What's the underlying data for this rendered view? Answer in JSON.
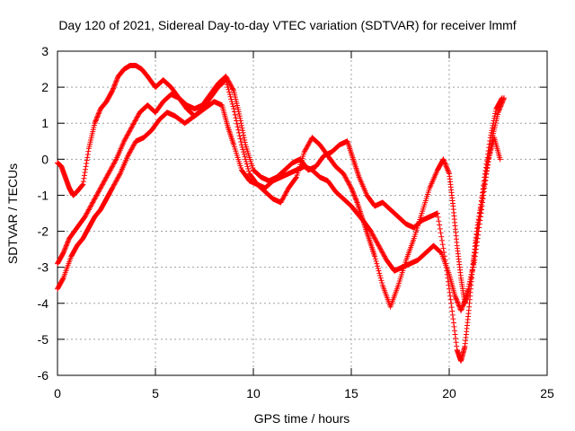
{
  "chart_data": {
    "type": "scatter",
    "title": "Day 120 of 2021, Sidereal Day-to-day VTEC variation (SDTVAR) for receiver lmmf",
    "xlabel": "GPS time / hours",
    "ylabel": "SDTVAR / TECUs",
    "xlim": [
      0,
      25
    ],
    "ylim": [
      -6,
      3
    ],
    "xticks": [
      "0",
      "5",
      "10",
      "15",
      "20",
      "25"
    ],
    "yticks": [
      "-6",
      "-5",
      "-4",
      "-3",
      "-2",
      "-1",
      "0",
      "1",
      "2",
      "3"
    ],
    "grid": true,
    "marker": "+",
    "color": "#ff0000",
    "series": [
      {
        "x": [
          0.0,
          0.3,
          0.7,
          1.0,
          1.3,
          1.6,
          1.9,
          2.2,
          2.5,
          2.8,
          3.2,
          3.6,
          4.0,
          4.4,
          4.8,
          5.2,
          5.6,
          6.0,
          6.5,
          7.0,
          7.5,
          8.0,
          8.4,
          8.7,
          9.0,
          9.4,
          9.8,
          10.2,
          10.6,
          11.0,
          11.4,
          11.8,
          12.2,
          12.6,
          13.0,
          13.4,
          13.8,
          14.2,
          14.6,
          15.0,
          15.3,
          15.6,
          16.0,
          16.4,
          16.8,
          17.2,
          17.6,
          18.0,
          18.4,
          18.8,
          19.2,
          19.6,
          20.0,
          20.3,
          20.6,
          20.9,
          21.2,
          21.5,
          21.8,
          22.1,
          22.4,
          22.7
        ],
        "y": [
          -3.6,
          -3.3,
          -2.7,
          -2.4,
          -2.2,
          -1.9,
          -1.6,
          -1.4,
          -1.1,
          -0.8,
          -0.4,
          0.1,
          0.5,
          0.6,
          0.8,
          1.1,
          1.3,
          1.2,
          1.0,
          1.2,
          1.4,
          1.6,
          1.5,
          0.9,
          0.4,
          -0.3,
          -0.6,
          -0.7,
          -0.8,
          -0.6,
          -0.5,
          -0.4,
          -0.3,
          -0.2,
          -0.3,
          -0.5,
          -0.6,
          -0.9,
          -1.1,
          -1.3,
          -1.5,
          -1.7,
          -2.0,
          -2.4,
          -2.8,
          -3.1,
          -3.0,
          -2.9,
          -2.8,
          -2.6,
          -2.4,
          -2.6,
          -3.2,
          -3.8,
          -4.2,
          -3.8,
          -3.0,
          -1.8,
          -0.5,
          0.6,
          1.4,
          1.7
        ]
      },
      {
        "x": [
          0.0,
          0.3,
          0.6,
          1.0,
          1.4,
          1.8,
          2.2,
          2.6,
          3.0,
          3.4,
          3.8,
          4.2,
          4.6,
          5.0,
          5.4,
          5.8,
          6.2,
          6.6,
          7.0,
          7.4,
          7.8,
          8.2,
          8.6,
          9.0,
          9.4,
          9.8,
          10.2,
          10.6,
          11.0,
          11.4,
          11.8,
          12.2,
          12.6,
          13.0,
          13.4,
          13.8,
          14.2,
          14.6,
          15.0,
          15.3,
          15.6,
          15.9,
          16.2,
          16.6,
          17.0,
          17.4,
          17.8,
          18.2,
          18.6,
          19.0,
          19.4,
          19.7,
          20.0,
          20.2,
          20.4,
          20.6,
          20.8,
          21.0,
          21.3,
          21.6,
          21.9,
          22.2,
          22.5,
          22.8
        ],
        "y": [
          -2.9,
          -2.6,
          -2.2,
          -1.9,
          -1.6,
          -1.2,
          -0.8,
          -0.4,
          0.0,
          0.5,
          0.9,
          1.3,
          1.5,
          1.3,
          1.6,
          1.8,
          1.7,
          1.4,
          1.2,
          1.4,
          1.7,
          2.0,
          2.2,
          1.4,
          0.4,
          -0.4,
          -0.7,
          -0.9,
          -1.1,
          -1.2,
          -0.8,
          -0.5,
          0.2,
          0.6,
          0.4,
          0.1,
          -0.2,
          -0.4,
          -0.8,
          -1.2,
          -1.7,
          -2.2,
          -2.7,
          -3.5,
          -4.1,
          -3.5,
          -2.8,
          -2.2,
          -1.5,
          -0.8,
          -0.3,
          0.0,
          -0.4,
          -1.3,
          -2.4,
          -3.3,
          -4.0,
          -3.6,
          -2.8,
          -1.6,
          -0.4,
          0.6,
          1.3,
          1.7
        ]
      },
      {
        "x": [
          0.0,
          0.2,
          0.4,
          0.6,
          0.8,
          1.0,
          1.3,
          1.6,
          1.9,
          2.2,
          2.5,
          2.8,
          3.1,
          3.4,
          3.7,
          4.0,
          4.3,
          4.6,
          5.0,
          5.4,
          5.8,
          6.2,
          6.6,
          7.0,
          7.4,
          7.8,
          8.2,
          8.6,
          9.0,
          9.3,
          9.6,
          10.0,
          10.4,
          10.8,
          11.2,
          11.6,
          12.0,
          12.4,
          12.8,
          13.2,
          13.6,
          14.0,
          14.4,
          14.8,
          15.1,
          15.4,
          15.8,
          16.2,
          16.6,
          17.0,
          17.4,
          17.8,
          18.2,
          18.6,
          19.0,
          19.4,
          19.8,
          20.1,
          20.4,
          20.6,
          20.8,
          21.0,
          21.2,
          21.4,
          21.7,
          22.0,
          22.3,
          22.6
        ],
        "y": [
          -0.1,
          -0.2,
          -0.5,
          -0.8,
          -1.0,
          -0.9,
          -0.7,
          0.3,
          1.0,
          1.4,
          1.6,
          1.9,
          2.3,
          2.5,
          2.6,
          2.6,
          2.5,
          2.3,
          2.0,
          2.2,
          2.0,
          1.7,
          1.5,
          1.4,
          1.5,
          1.8,
          2.1,
          2.3,
          1.9,
          1.2,
          0.4,
          -0.3,
          -0.5,
          -0.6,
          -0.5,
          -0.3,
          -0.1,
          0.0,
          -0.3,
          -0.2,
          0.1,
          0.2,
          0.4,
          0.5,
          0.0,
          -0.5,
          -1.0,
          -1.3,
          -1.2,
          -1.4,
          -1.6,
          -1.8,
          -1.9,
          -1.7,
          -1.6,
          -1.5,
          -2.8,
          -4.0,
          -5.3,
          -5.6,
          -5.2,
          -4.2,
          -3.0,
          -2.0,
          -1.0,
          0.0,
          0.6,
          0.0
        ]
      }
    ]
  }
}
